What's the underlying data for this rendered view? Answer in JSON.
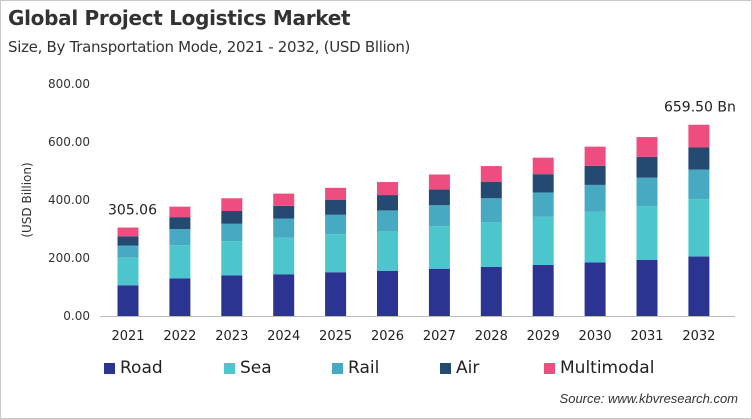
{
  "chart_data": {
    "type": "bar",
    "stacked": true,
    "title": "Global Project Logistics Market",
    "subtitle": "Size, By Transportation Mode, 2021 - 2032, (USD Bllion)",
    "xlabel": "",
    "ylabel": "(USD Billion)",
    "ylim": [
      0,
      800
    ],
    "yticks": [
      "0.00",
      "200.00",
      "400.00",
      "600.00",
      "800.00"
    ],
    "grid": false,
    "legend_position": "bottom",
    "categories": [
      "2021",
      "2022",
      "2023",
      "2024",
      "2025",
      "2026",
      "2027",
      "2028",
      "2029",
      "2030",
      "2031",
      "2032"
    ],
    "series": [
      {
        "name": "Road",
        "color": "#2b3591",
        "values": [
          106,
          130,
          140,
          144,
          151,
          156,
          163,
          169,
          176,
          185,
          194,
          205
        ]
      },
      {
        "name": "Sea",
        "color": "#4dc5cc",
        "values": [
          95,
          114,
          118,
          126,
          131,
          137,
          147,
          155,
          166,
          175,
          185,
          198
        ]
      },
      {
        "name": "Rail",
        "color": "#47a9c2",
        "values": [
          42,
          56,
          60,
          66,
          67,
          71,
          72,
          82,
          84,
          92,
          98,
          102
        ]
      },
      {
        "name": "Air",
        "color": "#254a72",
        "values": [
          32,
          41,
          44,
          44,
          51,
          53,
          54,
          56,
          63,
          66,
          72,
          76
        ]
      },
      {
        "name": "Multimodal",
        "color": "#ee4e7f",
        "values": [
          30.06,
          36,
          44,
          42,
          42,
          45,
          52,
          55,
          57,
          66,
          68,
          78.5
        ]
      }
    ],
    "annotations": [
      {
        "category": "2021",
        "text": "305.06"
      },
      {
        "category": "2032",
        "text": "659.50 Bn"
      }
    ],
    "source": "Source: www.kbvresearch.com"
  }
}
